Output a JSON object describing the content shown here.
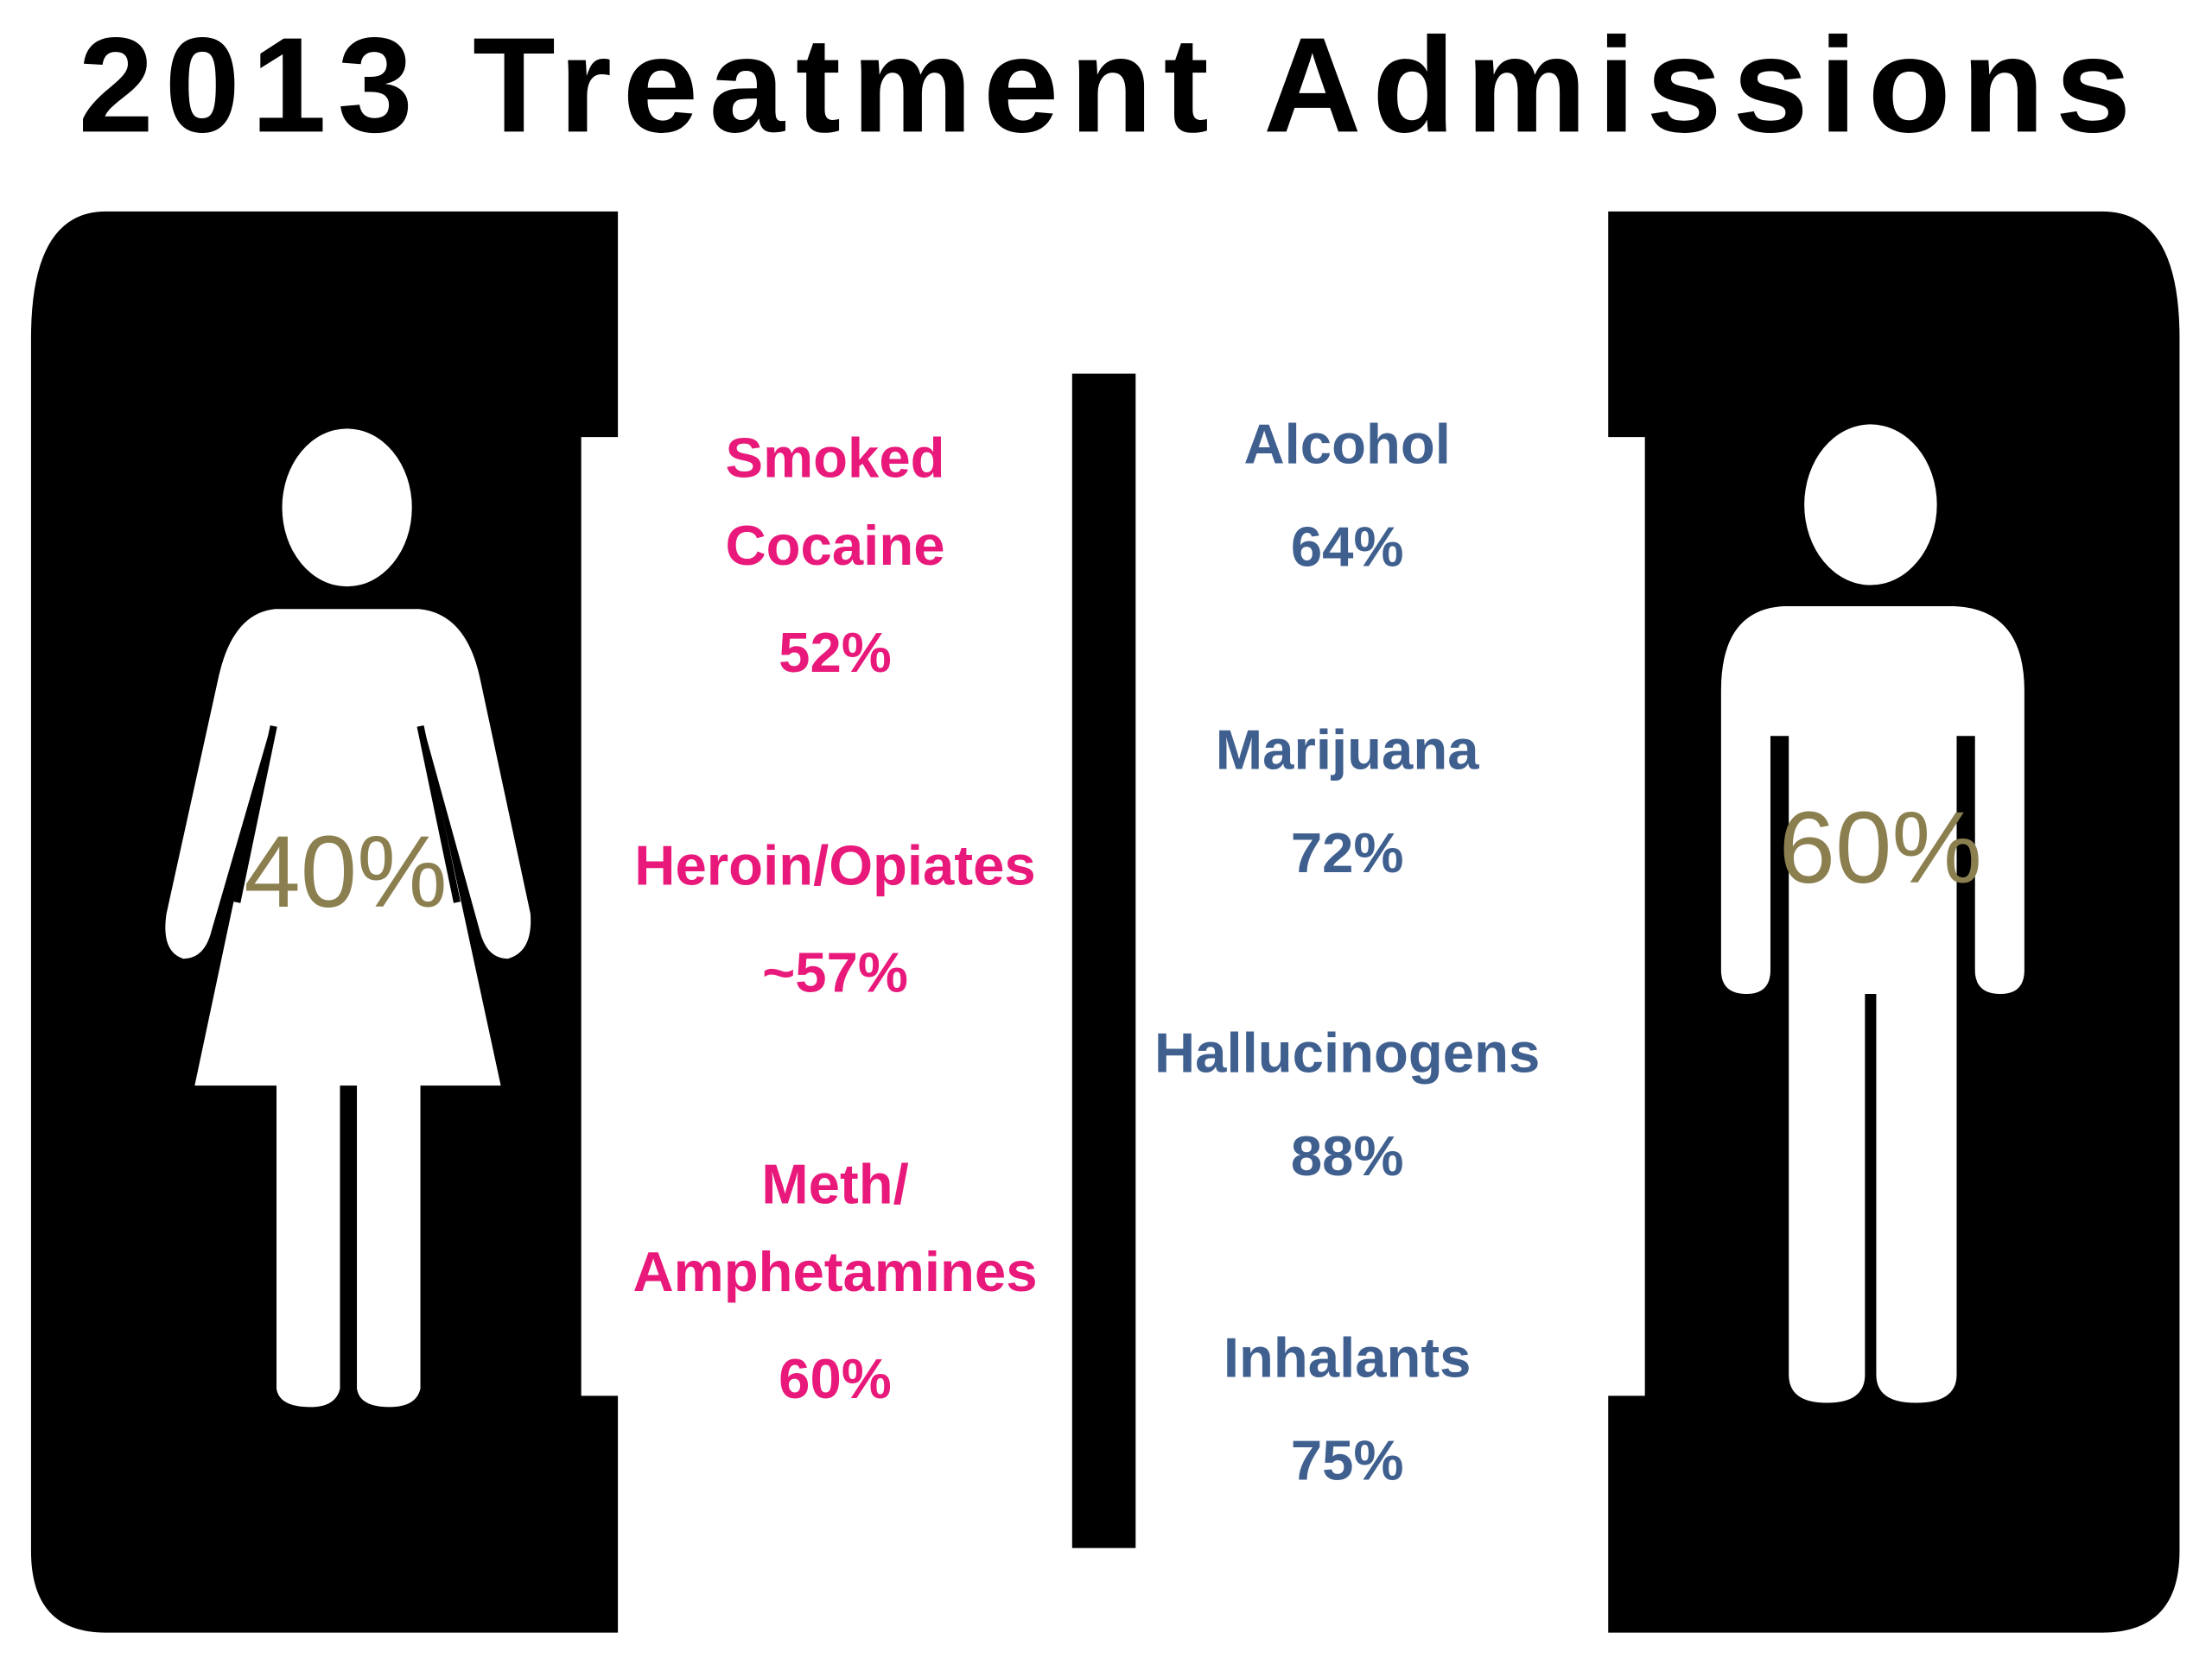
{
  "title": "2013 Treatment Admissions",
  "women": {
    "percent": "40%",
    "items": [
      {
        "label": [
          "Smoked",
          "Cocaine"
        ],
        "value": "52%"
      },
      {
        "label": [
          "Heroin/Opiates"
        ],
        "value": "~57%"
      },
      {
        "label": [
          "Meth/",
          "Amphetamines"
        ],
        "value": "60%"
      }
    ]
  },
  "men": {
    "percent": "60%",
    "items": [
      {
        "label": [
          "Alcohol"
        ],
        "value": "64%"
      },
      {
        "label": [
          "Marijuana"
        ],
        "value": "72%"
      },
      {
        "label": [
          "Hallucinogens"
        ],
        "value": "88%"
      },
      {
        "label": [
          "Inhalants"
        ],
        "value": "75%"
      }
    ]
  }
}
